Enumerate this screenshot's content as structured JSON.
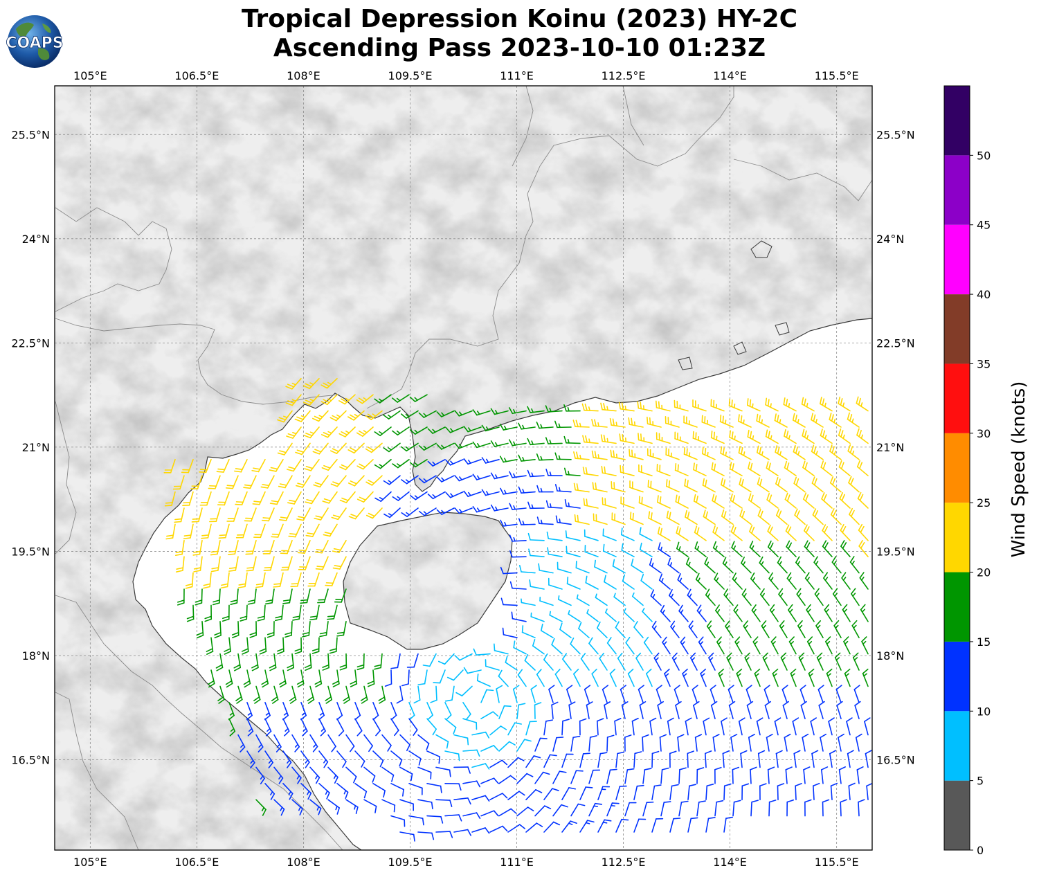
{
  "title_line1": "Tropical Depression Koinu (2023) HY-2C",
  "title_line2": "Ascending Pass 2023-10-10 01:23Z",
  "logo_text": "COAPS",
  "map": {
    "lon_ticks": [
      "105°E",
      "106.5°E",
      "108°E",
      "109.5°E",
      "111°E",
      "112.5°E",
      "114°E",
      "115.5°E"
    ],
    "lat_ticks": [
      "25.5°N",
      "24°N",
      "22.5°N",
      "21°N",
      "19.5°N",
      "18°N",
      "16.5°N"
    ],
    "lon_range": [
      104.5,
      116.0
    ],
    "lat_range": [
      15.2,
      26.2
    ],
    "gridlines": true,
    "background": "grayscale terrain with coastlines and borders"
  },
  "colorbar": {
    "label": "Wind Speed (knots)",
    "ticks": [
      "0",
      "5",
      "10",
      "15",
      "20",
      "25",
      "30",
      "35",
      "40",
      "45",
      "50"
    ],
    "bins": [
      {
        "from": 0,
        "to": 5,
        "color": "#585858"
      },
      {
        "from": 5,
        "to": 10,
        "color": "#00bfff"
      },
      {
        "from": 10,
        "to": 15,
        "color": "#0032ff"
      },
      {
        "from": 15,
        "to": 20,
        "color": "#009600"
      },
      {
        "from": 20,
        "to": 25,
        "color": "#ffd700"
      },
      {
        "from": 25,
        "to": 30,
        "color": "#ff8c00"
      },
      {
        "from": 30,
        "to": 35,
        "color": "#ff0f0f"
      },
      {
        "from": 35,
        "to": 40,
        "color": "#823c28"
      },
      {
        "from": 40,
        "to": 45,
        "color": "#ff00ff"
      },
      {
        "from": 45,
        "to": 50,
        "color": "#8c00c8"
      },
      {
        "from": 50,
        "to": 55,
        "color": "#320064"
      }
    ]
  }
}
